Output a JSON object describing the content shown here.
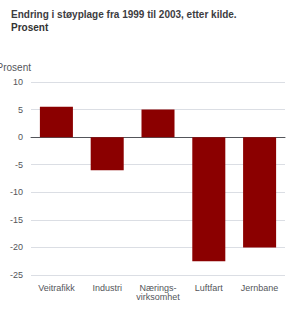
{
  "chart_data": {
    "type": "bar",
    "title": "Endring i støyplage fra 1999 til 2003, etter kilde.",
    "subtitle": "Prosent",
    "ylabel": "Prosent",
    "categories": [
      "Veitrafikk",
      "Industri",
      "Nærings-\nvirksomhet",
      "Luftfart",
      "Jernbane"
    ],
    "values": [
      5.5,
      -6.0,
      5.0,
      -22.5,
      -20.0
    ],
    "color": "#8B0000",
    "ylim": [
      -25,
      10
    ],
    "yticks": [
      -25,
      -20,
      -15,
      -10,
      -5,
      0,
      5,
      10
    ],
    "grid": true
  }
}
